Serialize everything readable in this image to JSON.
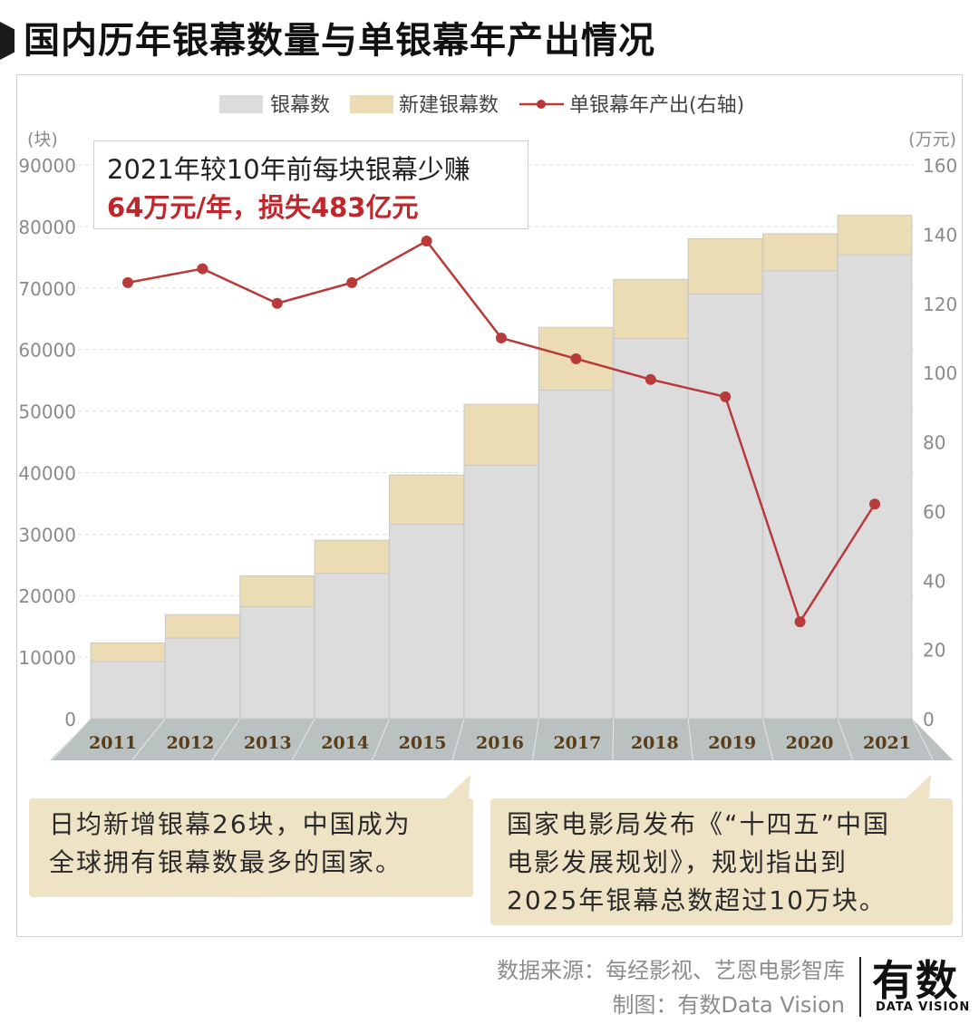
{
  "header": {
    "title": "国内历年银幕数量与单银幕年产出情况"
  },
  "chart_data": {
    "type": "bar",
    "categories": [
      "2011",
      "2012",
      "2013",
      "2014",
      "2015",
      "2016",
      "2017",
      "2018",
      "2019",
      "2020",
      "2021"
    ],
    "series": [
      {
        "name": "银幕数",
        "kind": "stacked-bar",
        "axis": "left",
        "color": "#dcdcdc",
        "values": [
          9300,
          13100,
          18200,
          23600,
          31600,
          41200,
          53400,
          61800,
          69000,
          72800,
          75400
        ]
      },
      {
        "name": "新建银幕数",
        "kind": "stacked-bar",
        "axis": "left",
        "color": "#ecdcb4",
        "values": [
          3000,
          3800,
          5000,
          5400,
          8000,
          9900,
          10200,
          9600,
          9000,
          6000,
          6400
        ]
      },
      {
        "name": "单银幕年产出(右轴)",
        "kind": "line",
        "axis": "right",
        "color": "#b83a3a",
        "values": [
          126,
          130,
          120,
          126,
          138,
          110,
          104,
          98,
          93,
          28,
          62
        ]
      }
    ],
    "left_axis": {
      "unit": "(块)",
      "ylim": [
        0,
        90000
      ],
      "ticks": [
        "0",
        "10000",
        "20000",
        "30000",
        "40000",
        "50000",
        "60000",
        "70000",
        "80000",
        "90000"
      ]
    },
    "right_axis": {
      "unit": "(万元)",
      "ylim": [
        0,
        160
      ],
      "ticks": [
        "0",
        "20",
        "40",
        "60",
        "80",
        "100",
        "120",
        "140",
        "160"
      ]
    },
    "grid": true,
    "legend": "top-center"
  },
  "callout": {
    "line1": "2021年较10年前每块银幕少赚",
    "line2": "64万元/年，损失483亿元"
  },
  "notes": {
    "left": [
      "日均新增银幕26块，中国成为",
      "全球拥有银幕数最多的国家。"
    ],
    "right": [
      "国家电影局发布《“十四五”中国",
      "电影发展规划》，规划指出到",
      "2025年银幕总数超过10万块。"
    ]
  },
  "footer": {
    "source": "数据来源：每经影视、艺恩电影智库",
    "credit": "制图：有数Data Vision",
    "logo_main": "有数",
    "logo_sub": "DATA VISION"
  }
}
